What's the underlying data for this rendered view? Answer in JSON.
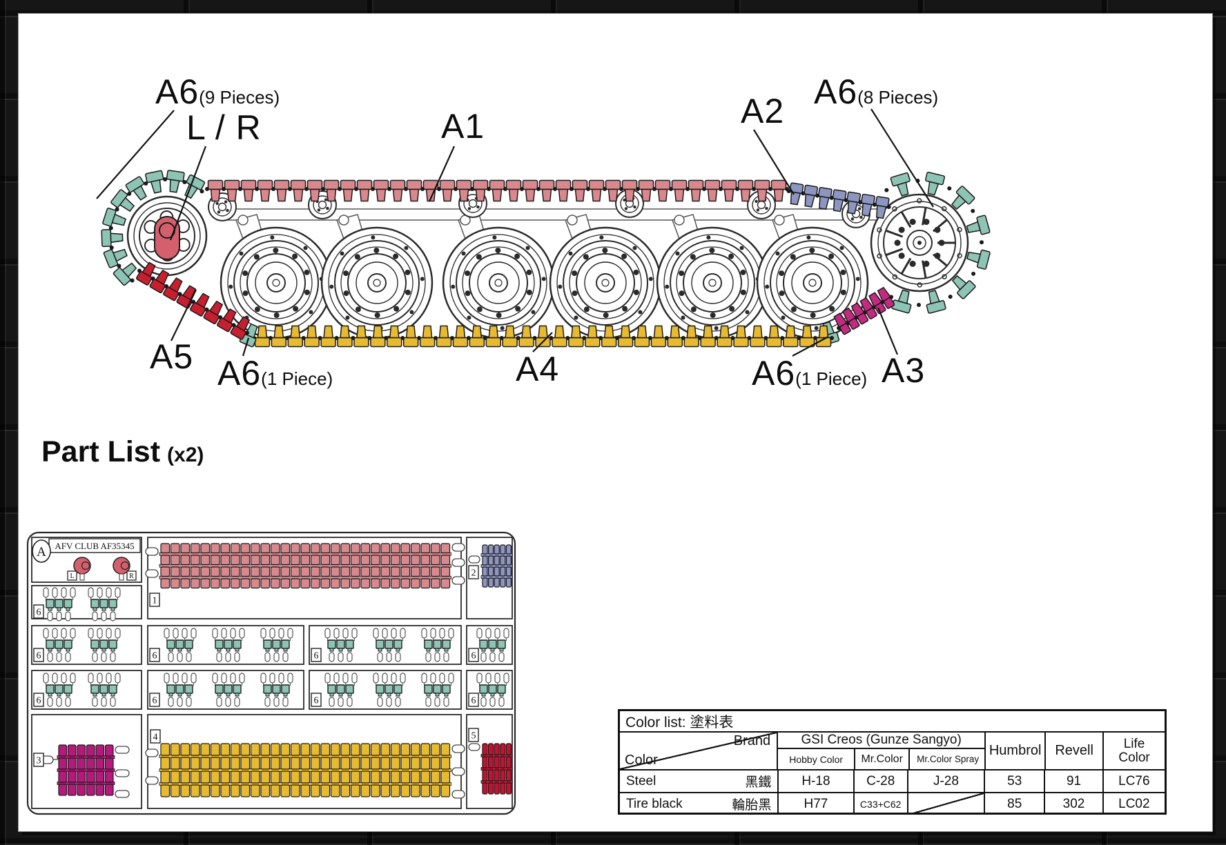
{
  "diagram": {
    "callouts": [
      {
        "part": "A6",
        "qty": "(9 Pieces)"
      },
      {
        "part": "L / R",
        "qty": ""
      },
      {
        "part": "A1",
        "qty": ""
      },
      {
        "part": "A2",
        "qty": ""
      },
      {
        "part": "A6",
        "qty": "(8 Pieces)"
      },
      {
        "part": "A5",
        "qty": ""
      },
      {
        "part": "A6",
        "qty": "(1 Piece)"
      },
      {
        "part": "A4",
        "qty": ""
      },
      {
        "part": "A6",
        "qty": "(1 Piece)"
      },
      {
        "part": "A3",
        "qty": ""
      }
    ],
    "track_sections": [
      {
        "id": "A1",
        "color": "#d9898e",
        "links": 35
      },
      {
        "id": "A2",
        "color": "#8d95c1",
        "links": 7
      },
      {
        "id": "A3",
        "color": "#c42a80",
        "links": 6
      },
      {
        "id": "A4",
        "color": "#e7ba2f",
        "links": 35
      },
      {
        "id": "A5",
        "color": "#c81f2f",
        "links": 8
      },
      {
        "id": "A6",
        "color": "#8ec4b4",
        "links": 19
      }
    ],
    "lr_part_color": "#d5606d",
    "line_color": "#2a2a2a"
  },
  "part_list": {
    "title": "Part List",
    "multiplier": "(x2)",
    "sprue_letter": "A",
    "maker": "AFV CLUB",
    "kit_number": "AF35345",
    "left_tag": "L",
    "right_tag": "R",
    "runner_labels": [
      "1",
      "2",
      "3",
      "4",
      "5",
      "6"
    ],
    "sprue_colors": {
      "1": "#d9898e",
      "2": "#8d95c1",
      "3": "#b5197c",
      "4": "#e7ba2f",
      "5": "#c41230",
      "6": "#8ec4b4"
    }
  },
  "color_table": {
    "title": "Color list: 塗料表",
    "corner": {
      "top": "Brand",
      "bottom": "Color"
    },
    "group_header": "GSI  Creos  (Gunze  Sangyo)",
    "sub_columns": [
      "Hobby Color",
      "Mr.Color",
      "Mr.Color Spray"
    ],
    "brand_columns": [
      "Humbrol",
      "Revell"
    ],
    "life_color_line1": "Life",
    "life_color_line2": "Color",
    "rows": [
      {
        "color_en": "Steel",
        "color_zh": "黑鐵",
        "hobby": "H-18",
        "mr": "C-28",
        "spray": "J-28",
        "humbrol": "53",
        "revell": "91",
        "life": "LC76"
      },
      {
        "color_en": "Tire  black",
        "color_zh": "輪胎黑",
        "hobby": "H77",
        "mr": "C33+C62",
        "spray": "",
        "humbrol": "85",
        "revell": "302",
        "life": "LC02"
      }
    ]
  }
}
